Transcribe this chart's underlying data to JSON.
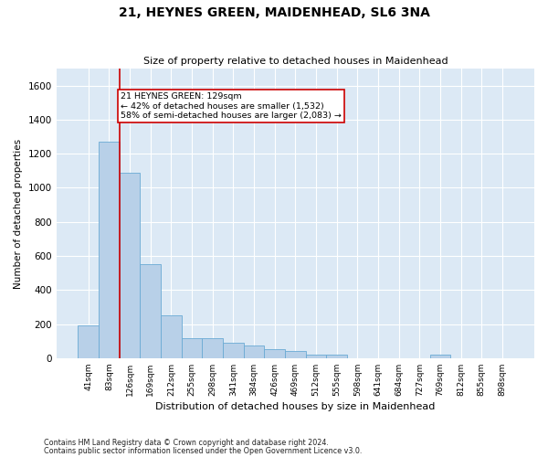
{
  "title1": "21, HEYNES GREEN, MAIDENHEAD, SL6 3NA",
  "title2": "Size of property relative to detached houses in Maidenhead",
  "xlabel": "Distribution of detached houses by size in Maidenhead",
  "ylabel": "Number of detached properties",
  "footnote1": "Contains HM Land Registry data © Crown copyright and database right 2024.",
  "footnote2": "Contains public sector information licensed under the Open Government Licence v3.0.",
  "bar_color": "#b8d0e8",
  "bar_edge_color": "#6aaad4",
  "background_color": "#dce9f5",
  "annotation_box_color": "#cc0000",
  "annotation_text_line1": "21 HEYNES GREEN: 129sqm",
  "annotation_text_line2": "← 42% of detached houses are smaller (1,532)",
  "annotation_text_line3": "58% of semi-detached houses are larger (2,083) →",
  "categories": [
    "41sqm",
    "83sqm",
    "126sqm",
    "169sqm",
    "212sqm",
    "255sqm",
    "298sqm",
    "341sqm",
    "384sqm",
    "426sqm",
    "469sqm",
    "512sqm",
    "555sqm",
    "598sqm",
    "641sqm",
    "684sqm",
    "727sqm",
    "769sqm",
    "812sqm",
    "855sqm",
    "898sqm"
  ],
  "values": [
    190,
    1270,
    1090,
    550,
    250,
    115,
    115,
    90,
    75,
    55,
    40,
    20,
    20,
    0,
    0,
    0,
    0,
    20,
    0,
    0,
    0
  ],
  "ylim": [
    0,
    1700
  ],
  "yticks": [
    0,
    200,
    400,
    600,
    800,
    1000,
    1200,
    1400,
    1600
  ],
  "vline_x": 1.5,
  "figsize": [
    6.0,
    5.0
  ],
  "dpi": 100
}
